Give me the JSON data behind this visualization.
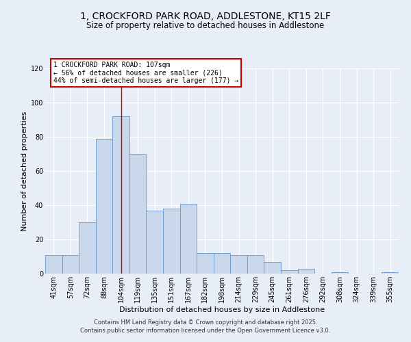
{
  "title1": "1, CROCKFORD PARK ROAD, ADDLESTONE, KT15 2LF",
  "title2": "Size of property relative to detached houses in Addlestone",
  "xlabel": "Distribution of detached houses by size in Addlestone",
  "ylabel": "Number of detached properties",
  "categories": [
    "41sqm",
    "57sqm",
    "72sqm",
    "88sqm",
    "104sqm",
    "119sqm",
    "135sqm",
    "151sqm",
    "167sqm",
    "182sqm",
    "198sqm",
    "214sqm",
    "229sqm",
    "245sqm",
    "261sqm",
    "276sqm",
    "292sqm",
    "308sqm",
    "324sqm",
    "339sqm",
    "355sqm"
  ],
  "values": [
    11,
    11,
    30,
    79,
    92,
    70,
    37,
    38,
    41,
    12,
    12,
    11,
    11,
    7,
    2,
    3,
    0,
    1,
    0,
    0,
    1
  ],
  "bar_color": "#c8d8ea",
  "bar_edge_color": "#6699cc",
  "background_color": "#e8eef7",
  "grid_color": "#ffffff",
  "vline_x": 4.0,
  "vline_color": "#cc0000",
  "annotation_text": "1 CROCKFORD PARK ROAD: 107sqm\n← 56% of detached houses are smaller (226)\n44% of semi-detached houses are larger (177) →",
  "annotation_box_color": "#ffffff",
  "annotation_box_edge": "#cc0000",
  "footer1": "Contains HM Land Registry data © Crown copyright and database right 2025.",
  "footer2": "Contains public sector information licensed under the Open Government Licence v3.0.",
  "ylim": [
    0,
    120
  ],
  "yticks": [
    0,
    20,
    40,
    60,
    80,
    100,
    120
  ],
  "title1_fontsize": 10,
  "title2_fontsize": 8.5,
  "xlabel_fontsize": 8,
  "ylabel_fontsize": 8,
  "tick_fontsize": 7,
  "annotation_fontsize": 7,
  "footer_fontsize": 6
}
